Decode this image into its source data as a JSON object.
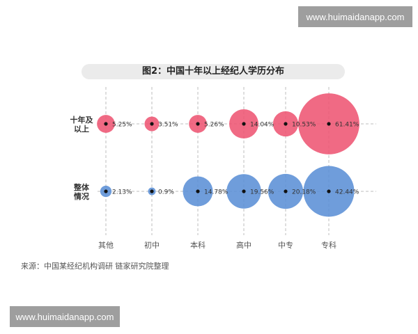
{
  "watermark": {
    "top": "www.huimaidanapp.com",
    "bottom": "www.huimaidanapp.com"
  },
  "source_note": "来源：中国某经纪机构调研 链家研究院整理",
  "colors": {
    "series_1": "#ee5573",
    "series_2": "#5b8fd6",
    "title_bg": "#ebebeb"
  },
  "chart_data": {
    "type": "bubble",
    "title": "图2：中国十年以上经纪人学历分布",
    "categories": [
      "其他",
      "初中",
      "本科",
      "高中",
      "中专",
      "专科"
    ],
    "grid": true,
    "legend": "none",
    "series": [
      {
        "label_line1": "十年及",
        "label_line2": "以上",
        "values": [
          5.25,
          3.51,
          5.26,
          14.04,
          10.53,
          61.41
        ],
        "labels": [
          "5.25%",
          "3.51%",
          "5.26%",
          "14.04%",
          "10.53%",
          "61.41%"
        ]
      },
      {
        "label_line1": "整体",
        "label_line2": "情况",
        "values": [
          2.13,
          0.9,
          14.78,
          19.56,
          20.18,
          42.44
        ],
        "labels": [
          "2.13%",
          "0.9%",
          "14.78%",
          "19.56%",
          "20.18%",
          "42.44%"
        ]
      }
    ]
  }
}
